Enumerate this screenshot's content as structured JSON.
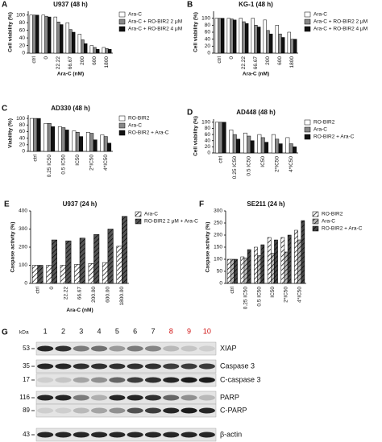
{
  "chart_data": [
    {
      "type": "bar",
      "panel": "A",
      "title": "U937 (48 h)",
      "ylabel": "Cell viability (%)",
      "xlabel": "Ara-C (nM)",
      "categories": [
        "ctrl",
        "0",
        "22.22",
        "66.67",
        "200",
        "600",
        "1800"
      ],
      "series": [
        {
          "name": "Ara-C",
          "color": "#ffffff",
          "values": [
            100,
            100,
            95,
            80,
            50,
            20,
            15
          ]
        },
        {
          "name": "Ara-C + RO-BIR2 2 μM",
          "color": "#888888",
          "values": [
            100,
            97,
            82,
            62,
            35,
            15,
            12
          ]
        },
        {
          "name": "Ara-C + RO-BIR2 4 μM",
          "color": "#111111",
          "values": [
            100,
            95,
            75,
            55,
            25,
            10,
            10
          ]
        }
      ],
      "ylim": [
        0,
        110
      ],
      "yticks": [
        0,
        20,
        40,
        60,
        80,
        100
      ]
    },
    {
      "type": "bar",
      "panel": "B",
      "title": "KG-1 (48 h)",
      "ylabel": "Cell viability (%)",
      "xlabel": "Ara-C (nM)",
      "categories": [
        "ctrl",
        "0",
        "22.22",
        "66.67",
        "200",
        "600",
        "1800"
      ],
      "series": [
        {
          "name": "Ara-C",
          "color": "#ffffff",
          "values": [
            100,
            100,
            100,
            100,
            95,
            80,
            60
          ]
        },
        {
          "name": "Ara-C + RO-BIR2 2 μM",
          "color": "#888888",
          "values": [
            100,
            98,
            90,
            80,
            65,
            55,
            40
          ]
        },
        {
          "name": "Ara-C + RO-BIR2 4 μM",
          "color": "#111111",
          "values": [
            100,
            95,
            85,
            75,
            55,
            45,
            40
          ]
        }
      ],
      "ylim": [
        0,
        120
      ],
      "yticks": [
        0,
        20,
        40,
        60,
        80,
        100
      ]
    },
    {
      "type": "bar",
      "panel": "C",
      "title": "AD330 (48 h)",
      "ylabel": "Viability (%)",
      "categories": [
        "ctrl",
        "0.25 IC50",
        "0.5 IC50",
        "IC50",
        "2*IC50",
        "4*IC50"
      ],
      "series": [
        {
          "name": "RO-BIR2",
          "color": "#ffffff",
          "values": [
            100,
            85,
            75,
            62,
            58,
            50
          ]
        },
        {
          "name": "Ara-C",
          "color": "#888888",
          "values": [
            100,
            85,
            72,
            58,
            55,
            45
          ]
        },
        {
          "name": "RO-BIR2 + Ara-C",
          "color": "#111111",
          "values": [
            100,
            75,
            65,
            45,
            35,
            25
          ]
        }
      ],
      "ylim": [
        0,
        110
      ],
      "yticks": [
        0,
        20,
        40,
        60,
        80,
        100
      ]
    },
    {
      "type": "bar",
      "panel": "D",
      "title": "AD448 (48 h)",
      "ylabel": "Cell viability (%)",
      "categories": [
        "ctrl",
        "0.25 IC50",
        "0.5 IC50",
        "IC50",
        "2*IC50",
        "4*IC50"
      ],
      "series": [
        {
          "name": "RO-BIR2",
          "color": "#ffffff",
          "values": [
            100,
            75,
            65,
            60,
            60,
            50
          ]
        },
        {
          "name": "Ara-C",
          "color": "#888888",
          "values": [
            100,
            60,
            55,
            50,
            45,
            30
          ]
        },
        {
          "name": "RO-BIR2 + Ara-C",
          "color": "#111111",
          "values": [
            100,
            45,
            40,
            35,
            30,
            20
          ]
        }
      ],
      "ylim": [
        0,
        110
      ],
      "yticks": [
        0,
        20,
        40,
        60,
        80,
        100
      ]
    },
    {
      "type": "bar",
      "panel": "E",
      "title": "U937 (24 h)",
      "ylabel": "Caspase activity (%)",
      "xlabel": "Ara-C (nM)",
      "categories": [
        "ctrl",
        "0",
        "22.22",
        "66.67",
        "200.00",
        "600.00",
        "1800.00"
      ],
      "series": [
        {
          "name": "Ara-C",
          "color": "#ffffff",
          "hatch": true,
          "values": [
            100,
            100,
            100,
            105,
            110,
            115,
            205
          ]
        },
        {
          "name": "RO-BIR2 2 μM + Ara-C",
          "color": "#555555",
          "hatch": true,
          "values": [
            100,
            240,
            235,
            250,
            270,
            300,
            370
          ]
        }
      ],
      "ylim": [
        0,
        400
      ],
      "yticks": [
        0,
        100,
        200,
        300,
        400
      ]
    },
    {
      "type": "bar",
      "panel": "F",
      "title": "SE211 (24 h)",
      "ylabel": "Caspase activity (%)",
      "categories": [
        "ctrl",
        "0.25 IC50",
        "0.5 IC50",
        "IC50",
        "2*IC50",
        "4*IC50"
      ],
      "series": [
        {
          "name": "RO-BIR2",
          "color": "#ffffff",
          "hatch": true,
          "values": [
            100,
            110,
            150,
            190,
            190,
            220
          ]
        },
        {
          "name": "Ara-C",
          "color": "#bbbbbb",
          "hatch": true,
          "values": [
            100,
            105,
            115,
            125,
            130,
            180
          ]
        },
        {
          "name": "RO-BIR2 + Ara-C",
          "color": "#444444",
          "hatch": true,
          "values": [
            100,
            140,
            160,
            180,
            200,
            260
          ]
        }
      ],
      "ylim": [
        0,
        300
      ],
      "yticks": [
        0,
        50,
        100,
        150,
        200,
        250,
        300
      ]
    }
  ],
  "blot": {
    "panel": "G",
    "unit": "kDa",
    "lanes": [
      {
        "label": "1",
        "color": "#111111"
      },
      {
        "label": "2",
        "color": "#111111"
      },
      {
        "label": "3",
        "color": "#111111"
      },
      {
        "label": "4",
        "color": "#111111"
      },
      {
        "label": "5",
        "color": "#111111"
      },
      {
        "label": "6",
        "color": "#111111"
      },
      {
        "label": "7",
        "color": "#111111"
      },
      {
        "label": "8",
        "color": "#d01010"
      },
      {
        "label": "9",
        "color": "#d01010"
      },
      {
        "label": "10",
        "color": "#d01010"
      }
    ],
    "rows": [
      {
        "kda": "53",
        "protein": "XIAP"
      },
      {
        "kda": "35",
        "protein": "Caspase 3"
      },
      {
        "kda": "17",
        "protein": "C-caspase 3"
      },
      {
        "kda": "116",
        "protein": "PARP"
      },
      {
        "kda": "89",
        "protein": "C-PARP"
      },
      {
        "kda": "43",
        "protein": "β-actin"
      }
    ]
  }
}
